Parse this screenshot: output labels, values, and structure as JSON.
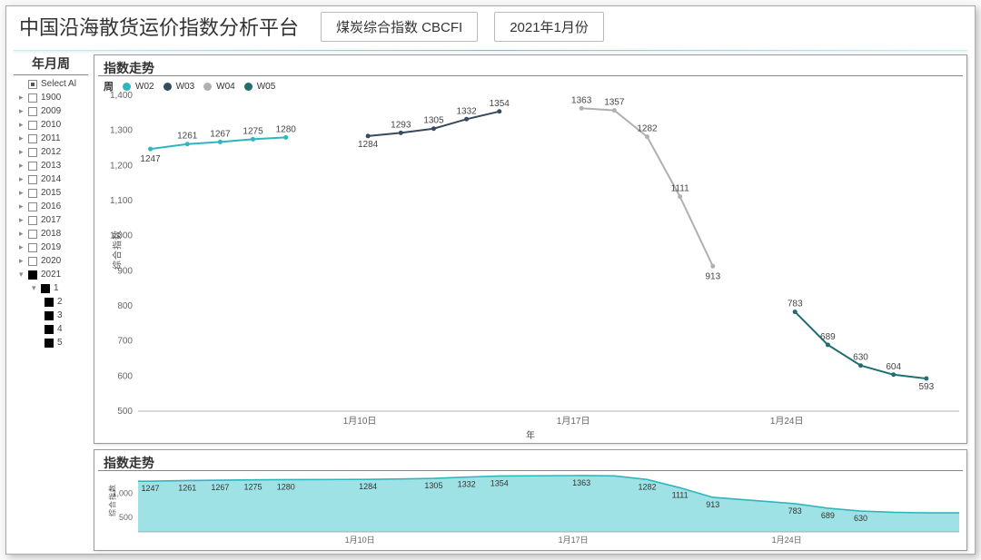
{
  "header": {
    "title": "中国沿海散货运价指数分析平台",
    "pill1": "煤炭综合指数 CBCFI",
    "pill2": "2021年1月份"
  },
  "sidebar": {
    "title": "年月周",
    "select_all": "Select Al",
    "years": [
      "1900",
      "2009",
      "2010",
      "2011",
      "2012",
      "2013",
      "2014",
      "2015",
      "2016",
      "2017",
      "2018",
      "2019",
      "2020"
    ],
    "selected_year": "2021",
    "month": "1",
    "weeks": [
      "2",
      "3",
      "4",
      "5"
    ]
  },
  "panel_top": {
    "title": "指数走势",
    "legend_label": "周",
    "yaxis_title": "综合指数",
    "xaxis_title": "年",
    "y": {
      "min": 500,
      "max": 1400,
      "step": 100
    },
    "x_ticks": [
      {
        "x": 0.27,
        "label": "1月10日"
      },
      {
        "x": 0.53,
        "label": "1月17日"
      },
      {
        "x": 0.79,
        "label": "1月24日"
      }
    ],
    "series": [
      {
        "name": "W02",
        "color": "#2fb6bd",
        "points": [
          {
            "x": 0.015,
            "y": 1247,
            "dy": 14
          },
          {
            "x": 0.06,
            "y": 1261,
            "dy": -6
          },
          {
            "x": 0.1,
            "y": 1267,
            "dy": -6
          },
          {
            "x": 0.14,
            "y": 1275,
            "dy": -6
          },
          {
            "x": 0.18,
            "y": 1280,
            "dy": -6
          }
        ]
      },
      {
        "name": "W03",
        "color": "#374a5e",
        "points": [
          {
            "x": 0.28,
            "y": 1284,
            "dy": 12
          },
          {
            "x": 0.32,
            "y": 1293,
            "dy": -6
          },
          {
            "x": 0.36,
            "y": 1305,
            "dy": -6
          },
          {
            "x": 0.4,
            "y": 1332,
            "dy": -6
          },
          {
            "x": 0.44,
            "y": 1354,
            "dy": -6
          }
        ]
      },
      {
        "name": "W04",
        "color": "#b0b0b0",
        "points": [
          {
            "x": 0.54,
            "y": 1363,
            "dy": -6
          },
          {
            "x": 0.58,
            "y": 1357,
            "dy": -6
          },
          {
            "x": 0.62,
            "y": 1282,
            "dy": -6
          },
          {
            "x": 0.66,
            "y": 1111,
            "dy": -6
          },
          {
            "x": 0.7,
            "y": 913,
            "dy": 14
          }
        ]
      },
      {
        "name": "W05",
        "color": "#1e6e73",
        "points": [
          {
            "x": 0.8,
            "y": 783,
            "dy": -6
          },
          {
            "x": 0.84,
            "y": 689,
            "dy": -6
          },
          {
            "x": 0.88,
            "y": 630,
            "dy": -6
          },
          {
            "x": 0.92,
            "y": 604,
            "dy": -6
          },
          {
            "x": 0.96,
            "y": 593,
            "dy": 12
          }
        ]
      }
    ]
  },
  "panel_bot": {
    "title": "指数走势",
    "yaxis_title": "综合指数",
    "y": {
      "min": 200,
      "max": 1400,
      "ticks": [
        500,
        1000
      ]
    },
    "area_color": "#8edde0",
    "line_color": "#2fb6bd",
    "x_ticks": [
      {
        "x": 0.27,
        "label": "1月10日"
      },
      {
        "x": 0.53,
        "label": "1月17日"
      },
      {
        "x": 0.79,
        "label": "1月24日"
      }
    ],
    "points": [
      {
        "x": 0.015,
        "y": 1247,
        "show": true
      },
      {
        "x": 0.06,
        "y": 1261,
        "show": true
      },
      {
        "x": 0.1,
        "y": 1267,
        "show": true
      },
      {
        "x": 0.14,
        "y": 1275,
        "show": true
      },
      {
        "x": 0.18,
        "y": 1280,
        "show": true
      },
      {
        "x": 0.28,
        "y": 1284,
        "show": true
      },
      {
        "x": 0.32,
        "y": 1293,
        "show": false
      },
      {
        "x": 0.36,
        "y": 1305,
        "show": true
      },
      {
        "x": 0.4,
        "y": 1332,
        "show": true
      },
      {
        "x": 0.44,
        "y": 1354,
        "show": true
      },
      {
        "x": 0.54,
        "y": 1363,
        "show": true
      },
      {
        "x": 0.58,
        "y": 1357,
        "show": false
      },
      {
        "x": 0.62,
        "y": 1282,
        "show": true
      },
      {
        "x": 0.66,
        "y": 1111,
        "show": true
      },
      {
        "x": 0.7,
        "y": 913,
        "show": true
      },
      {
        "x": 0.8,
        "y": 783,
        "show": true
      },
      {
        "x": 0.84,
        "y": 689,
        "show": true
      },
      {
        "x": 0.88,
        "y": 630,
        "show": true
      },
      {
        "x": 0.92,
        "y": 604,
        "show": false
      },
      {
        "x": 0.96,
        "y": 593,
        "show": false
      }
    ]
  }
}
